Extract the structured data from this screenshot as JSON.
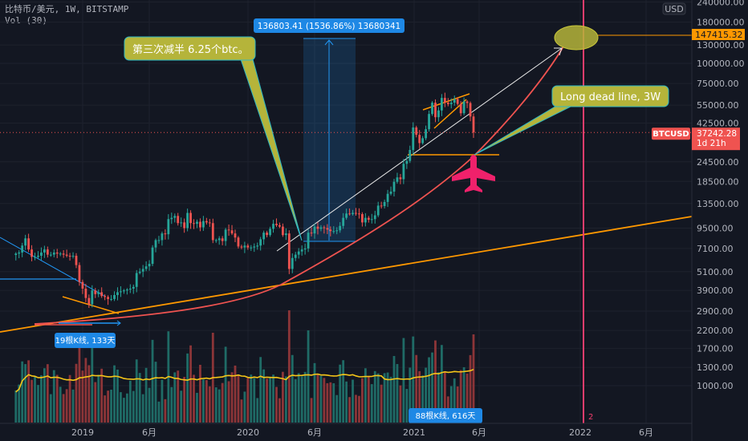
{
  "legend": {
    "symbol_line": "比特币/美元, 1W, BITSTAMP",
    "volume_line": "Vol (30)"
  },
  "colors": {
    "background": "#131722",
    "up": "#26a69a",
    "down": "#ef5350",
    "trend_orange": "#ff9800",
    "curve_red": "#ef5350",
    "vertical_marker": "#f23d6d",
    "callout_fill": "#b5b43a",
    "range_blue": "#2196f3",
    "volume_ma": "#f5c518"
  },
  "chart_data": {
    "type": "candlestick",
    "interval": "1W",
    "y_scale": "log",
    "currency": "USD",
    "ylim": [
      1000,
      240000
    ],
    "y_ticks": [
      "240000.00",
      "180000.00",
      "130000.00",
      "100000.00",
      "75000.00",
      "55000.00",
      "42500.00",
      "24500.00",
      "18500.00",
      "13500.00",
      "9500.00",
      "7100.00",
      "5100.00",
      "3900.00",
      "2900.00",
      "2200.00",
      "1700.00",
      "1300.00",
      "1000.00"
    ],
    "x_ticks": [
      "2019",
      "6月",
      "2020",
      "6月",
      "2021",
      "6月",
      "2022",
      "6月"
    ],
    "grid": true,
    "weekly_close": [
      6600,
      6700,
      7400,
      8200,
      7000,
      6300,
      6300,
      6400,
      6700,
      7000,
      6500,
      6500,
      6700,
      6600,
      6600,
      6500,
      6400,
      6350,
      6400,
      5600,
      4400,
      4000,
      3500,
      3200,
      3900,
      3700,
      3800,
      3600,
      3550,
      3450,
      3450,
      3650,
      3800,
      3850,
      3900,
      3950,
      4000,
      4100,
      5000,
      5100,
      5300,
      5500,
      5700,
      7200,
      8000,
      8000,
      8800,
      8700,
      10800,
      11000,
      11300,
      10200,
      10300,
      9500,
      11800,
      10200,
      10100,
      10400,
      9600,
      10500,
      10300,
      10200,
      8000,
      8000,
      8200,
      7900,
      9300,
      9200,
      8800,
      8300,
      7300,
      7200,
      7400,
      7200,
      7200,
      7300,
      7400,
      8100,
      8900,
      8600,
      9400,
      10100,
      9900,
      9700,
      8600,
      8800,
      5300,
      6200,
      6500,
      6800,
      7000,
      7100,
      8900,
      8800,
      9700,
      9400,
      9600,
      9500,
      9300,
      9100,
      9100,
      9200,
      9800,
      11000,
      11700,
      11600,
      11800,
      11700,
      11600,
      10300,
      11000,
      10700,
      10800,
      11400,
      13100,
      13000,
      13800,
      15500,
      16000,
      18400,
      19600,
      19100,
      23800,
      24800,
      29000,
      40000,
      36000,
      32000,
      34300,
      39000,
      48500,
      57000,
      46300,
      51000,
      61000,
      57000,
      55800,
      57000,
      60000,
      56000,
      49000,
      58000,
      56700,
      46800,
      37242.28
    ],
    "last_price": {
      "symbol": "BTCUSD",
      "value": "37242.28",
      "countdown": "1d 21h"
    },
    "target_price": "147415.32",
    "axis_unit": "USD",
    "annotations": {
      "price_range": "136803.41 (1536.86%) 13680341",
      "halving_callout": "第三次减半 6.25个btc。",
      "dead_line_callout": "Long dead line, 3W",
      "range_2018": "19根K线, 133天",
      "range_2020": "88根K线, 616天",
      "vertical_marker_label": "2"
    }
  }
}
